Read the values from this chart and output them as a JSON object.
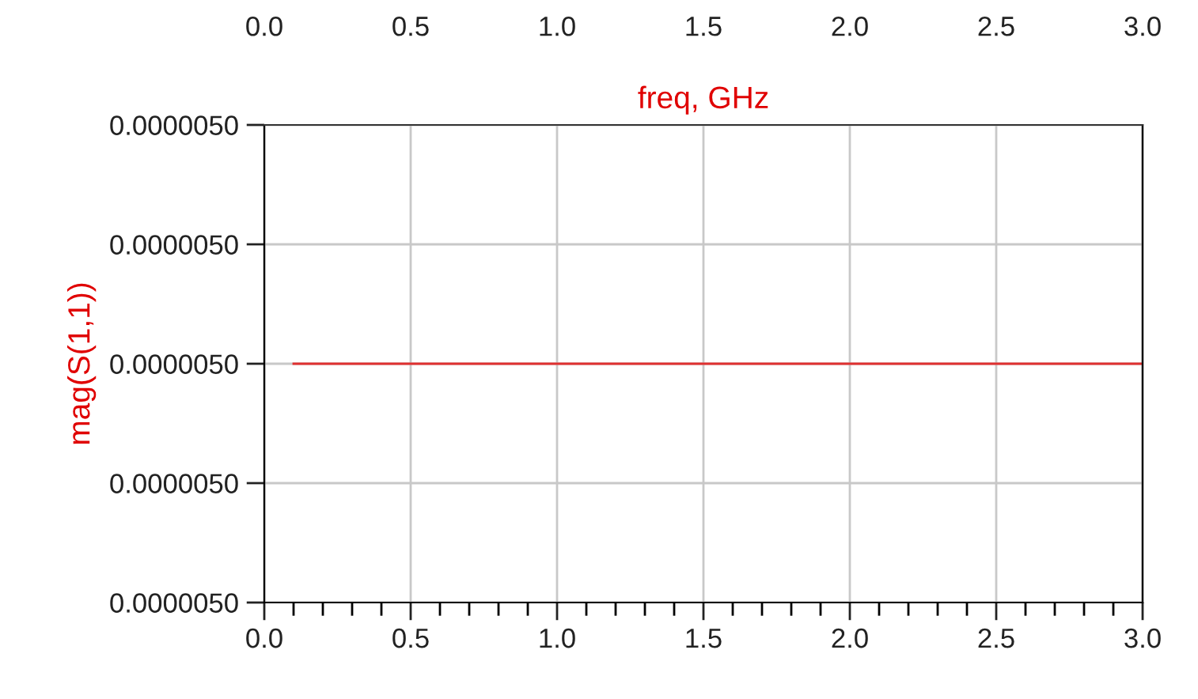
{
  "chart_data": {
    "type": "line",
    "ylabel": "mag(S(1,1))",
    "x2label": "freq, GHz",
    "x": [
      0.1,
      3.0
    ],
    "xlim": [
      0,
      3
    ],
    "xticks": [
      {
        "value": 0,
        "label": "0.0"
      },
      0.5,
      {
        "value": 1,
        "label": "1.0"
      },
      1.5,
      {
        "value": 2,
        "label": "2.0"
      },
      2.5,
      {
        "value": 3,
        "label": "3.0"
      }
    ],
    "x2lim": [
      0,
      3
    ],
    "x2ticks": [
      {
        "value": 0,
        "label": "0.0"
      },
      0.5,
      {
        "value": 1,
        "label": "1.0"
      },
      1.5,
      {
        "value": 2,
        "label": "2.0"
      },
      2.5,
      {
        "value": 3,
        "label": "3.0"
      }
    ],
    "ylim": [
      4.96e-06,
      5.04e-06
    ],
    "yticks": [
      {
        "value": 4.96e-06,
        "label": "0.0000050"
      },
      {
        "value": 4.98e-06,
        "label": "0.0000050"
      },
      {
        "value": 5e-06,
        "label": "0.0000050"
      },
      {
        "value": 5.02e-06,
        "label": "0.0000050"
      },
      {
        "value": 5.04e-06,
        "label": "0.0000050"
      }
    ],
    "grid": true,
    "series": [
      {
        "color": "#e03030",
        "values": [
          5e-06,
          5e-06
        ]
      }
    ]
  }
}
